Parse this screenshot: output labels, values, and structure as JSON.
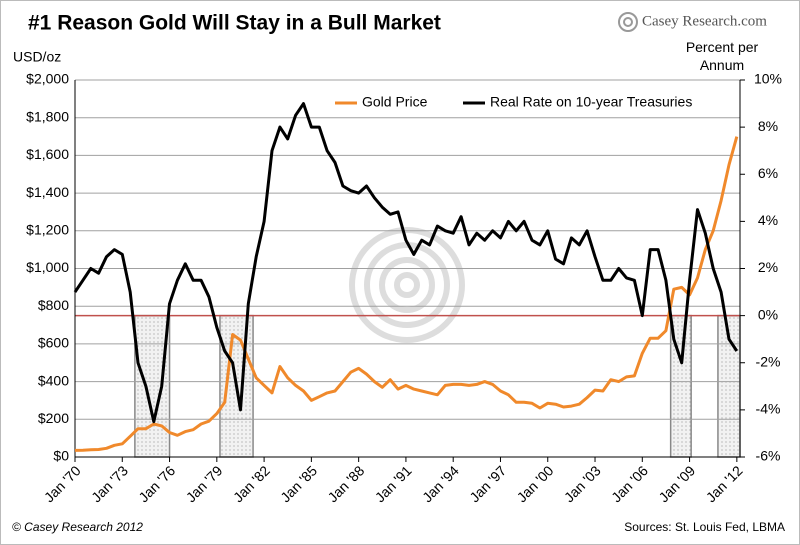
{
  "chart_data": {
    "type": "line",
    "title": "#1 Reason Gold Will Stay in a Bull Market",
    "logo": "Casey Research.com",
    "y_label": "USD/oz",
    "y2_label": "Percent per Annum",
    "footer_left": "© Casey Research 2012",
    "footer_right": "Sources: St. Louis Fed, LBMA",
    "x": [
      1970,
      1970.5,
      1971,
      1971.5,
      1972,
      1972.5,
      1973,
      1973.5,
      1974,
      1974.5,
      1975,
      1975.5,
      1976,
      1976.5,
      1977,
      1977.5,
      1978,
      1978.5,
      1979,
      1979.5,
      1980,
      1980.5,
      1981,
      1981.5,
      1982,
      1982.5,
      1983,
      1983.5,
      1984,
      1984.5,
      1985,
      1985.5,
      1986,
      1986.5,
      1987,
      1987.5,
      1988,
      1988.5,
      1989,
      1989.5,
      1990,
      1990.5,
      1991,
      1991.5,
      1992,
      1992.5,
      1993,
      1993.5,
      1994,
      1994.5,
      1995,
      1995.5,
      1996,
      1996.5,
      1997,
      1997.5,
      1998,
      1998.5,
      1999,
      1999.5,
      2000,
      2000.5,
      2001,
      2001.5,
      2002,
      2002.5,
      2003,
      2003.5,
      2004,
      2004.5,
      2005,
      2005.5,
      2006,
      2006.5,
      2007,
      2007.5,
      2008,
      2008.5,
      2009,
      2009.5,
      2010,
      2010.5,
      2011,
      2011.5,
      2012
    ],
    "series": [
      {
        "name": "Gold Price",
        "color": "#f0892b",
        "axis": "y",
        "values": [
          35,
          36,
          38,
          40,
          46,
          62,
          70,
          110,
          150,
          150,
          175,
          165,
          130,
          115,
          135,
          145,
          175,
          190,
          230,
          290,
          650,
          620,
          520,
          420,
          380,
          340,
          480,
          420,
          380,
          350,
          300,
          320,
          340,
          350,
          400,
          450,
          470,
          440,
          400,
          370,
          410,
          360,
          380,
          360,
          350,
          340,
          330,
          380,
          385,
          385,
          380,
          385,
          400,
          385,
          350,
          330,
          290,
          290,
          285,
          260,
          285,
          280,
          265,
          270,
          280,
          315,
          355,
          350,
          410,
          400,
          425,
          430,
          550,
          630,
          630,
          670,
          890,
          900,
          860,
          950,
          1100,
          1200,
          1360,
          1550,
          1700
        ]
      },
      {
        "name": "Real Rate on 10-year Treasuries",
        "color": "#000000",
        "axis": "y2",
        "values": [
          1,
          1.5,
          2,
          1.8,
          2.5,
          2.8,
          2.6,
          1,
          -2,
          -3,
          -4.5,
          -3,
          0.5,
          1.5,
          2.2,
          1.5,
          1.5,
          0.8,
          -0.5,
          -1.5,
          -2,
          -4,
          0.5,
          2.5,
          4,
          7,
          8,
          7.5,
          8.5,
          9,
          8,
          8,
          7,
          6.5,
          5.5,
          5.3,
          5.2,
          5.5,
          5,
          4.6,
          4.3,
          4.4,
          3.2,
          2.6,
          3.2,
          3,
          3.8,
          3.6,
          3.5,
          4.2,
          3,
          3.5,
          3.2,
          3.6,
          3.3,
          4,
          3.6,
          4,
          3.2,
          3,
          3.6,
          2.4,
          2.2,
          3.3,
          3,
          3.6,
          2.5,
          1.5,
          1.5,
          2,
          1.6,
          1.5,
          0,
          2.8,
          2.8,
          1.5,
          -1,
          -2,
          1.5,
          4.5,
          3.5,
          2,
          1,
          -1,
          -1.5
        ]
      }
    ],
    "shaded_periods": [
      [
        1973.8,
        1976.0
      ],
      [
        1979.2,
        1981.3
      ],
      [
        2007.8,
        2009.1
      ],
      [
        2010.8,
        2012.2
      ]
    ],
    "reference_line": {
      "axis": "y2",
      "value": 0,
      "color": "#c0504d"
    },
    "xlim": [
      1970,
      2012.2
    ],
    "xticks": [
      {
        "value": 1970,
        "label": "Jan '70"
      },
      {
        "value": 1973,
        "label": "Jan '73"
      },
      {
        "value": 1976,
        "label": "Jan '76"
      },
      {
        "value": 1979,
        "label": "Jan '79"
      },
      {
        "value": 1982,
        "label": "Jan '82"
      },
      {
        "value": 1985,
        "label": "Jan '85"
      },
      {
        "value": 1988,
        "label": "Jan '88"
      },
      {
        "value": 1991,
        "label": "Jan '91"
      },
      {
        "value": 1994,
        "label": "Jan '94"
      },
      {
        "value": 1997,
        "label": "Jan '97"
      },
      {
        "value": 2000,
        "label": "Jan '00"
      },
      {
        "value": 2003,
        "label": "Jan '03"
      },
      {
        "value": 2006,
        "label": "Jan '06"
      },
      {
        "value": 2009,
        "label": "Jan '09"
      },
      {
        "value": 2012,
        "label": "Jan '12"
      }
    ],
    "ylim": [
      0,
      2000
    ],
    "yticks": [
      {
        "value": 0,
        "label": "$0"
      },
      {
        "value": 200,
        "label": "$200"
      },
      {
        "value": 400,
        "label": "$400"
      },
      {
        "value": 600,
        "label": "$600"
      },
      {
        "value": 800,
        "label": "$800"
      },
      {
        "value": 1000,
        "label": "$1,000"
      },
      {
        "value": 1200,
        "label": "$1,200"
      },
      {
        "value": 1400,
        "label": "$1,400"
      },
      {
        "value": 1600,
        "label": "$1,600"
      },
      {
        "value": 1800,
        "label": "$1,800"
      },
      {
        "value": 2000,
        "label": "$2,000"
      }
    ],
    "y2lim": [
      -6,
      10
    ],
    "y2ticks": [
      {
        "value": -6,
        "label": "-6%"
      },
      {
        "value": -4,
        "label": "-4%"
      },
      {
        "value": -2,
        "label": "-2%"
      },
      {
        "value": 0,
        "label": "0%"
      },
      {
        "value": 2,
        "label": "2%"
      },
      {
        "value": 4,
        "label": "4%"
      },
      {
        "value": 6,
        "label": "6%"
      },
      {
        "value": 8,
        "label": "8%"
      },
      {
        "value": 10,
        "label": "10%"
      }
    ],
    "grid": true
  }
}
